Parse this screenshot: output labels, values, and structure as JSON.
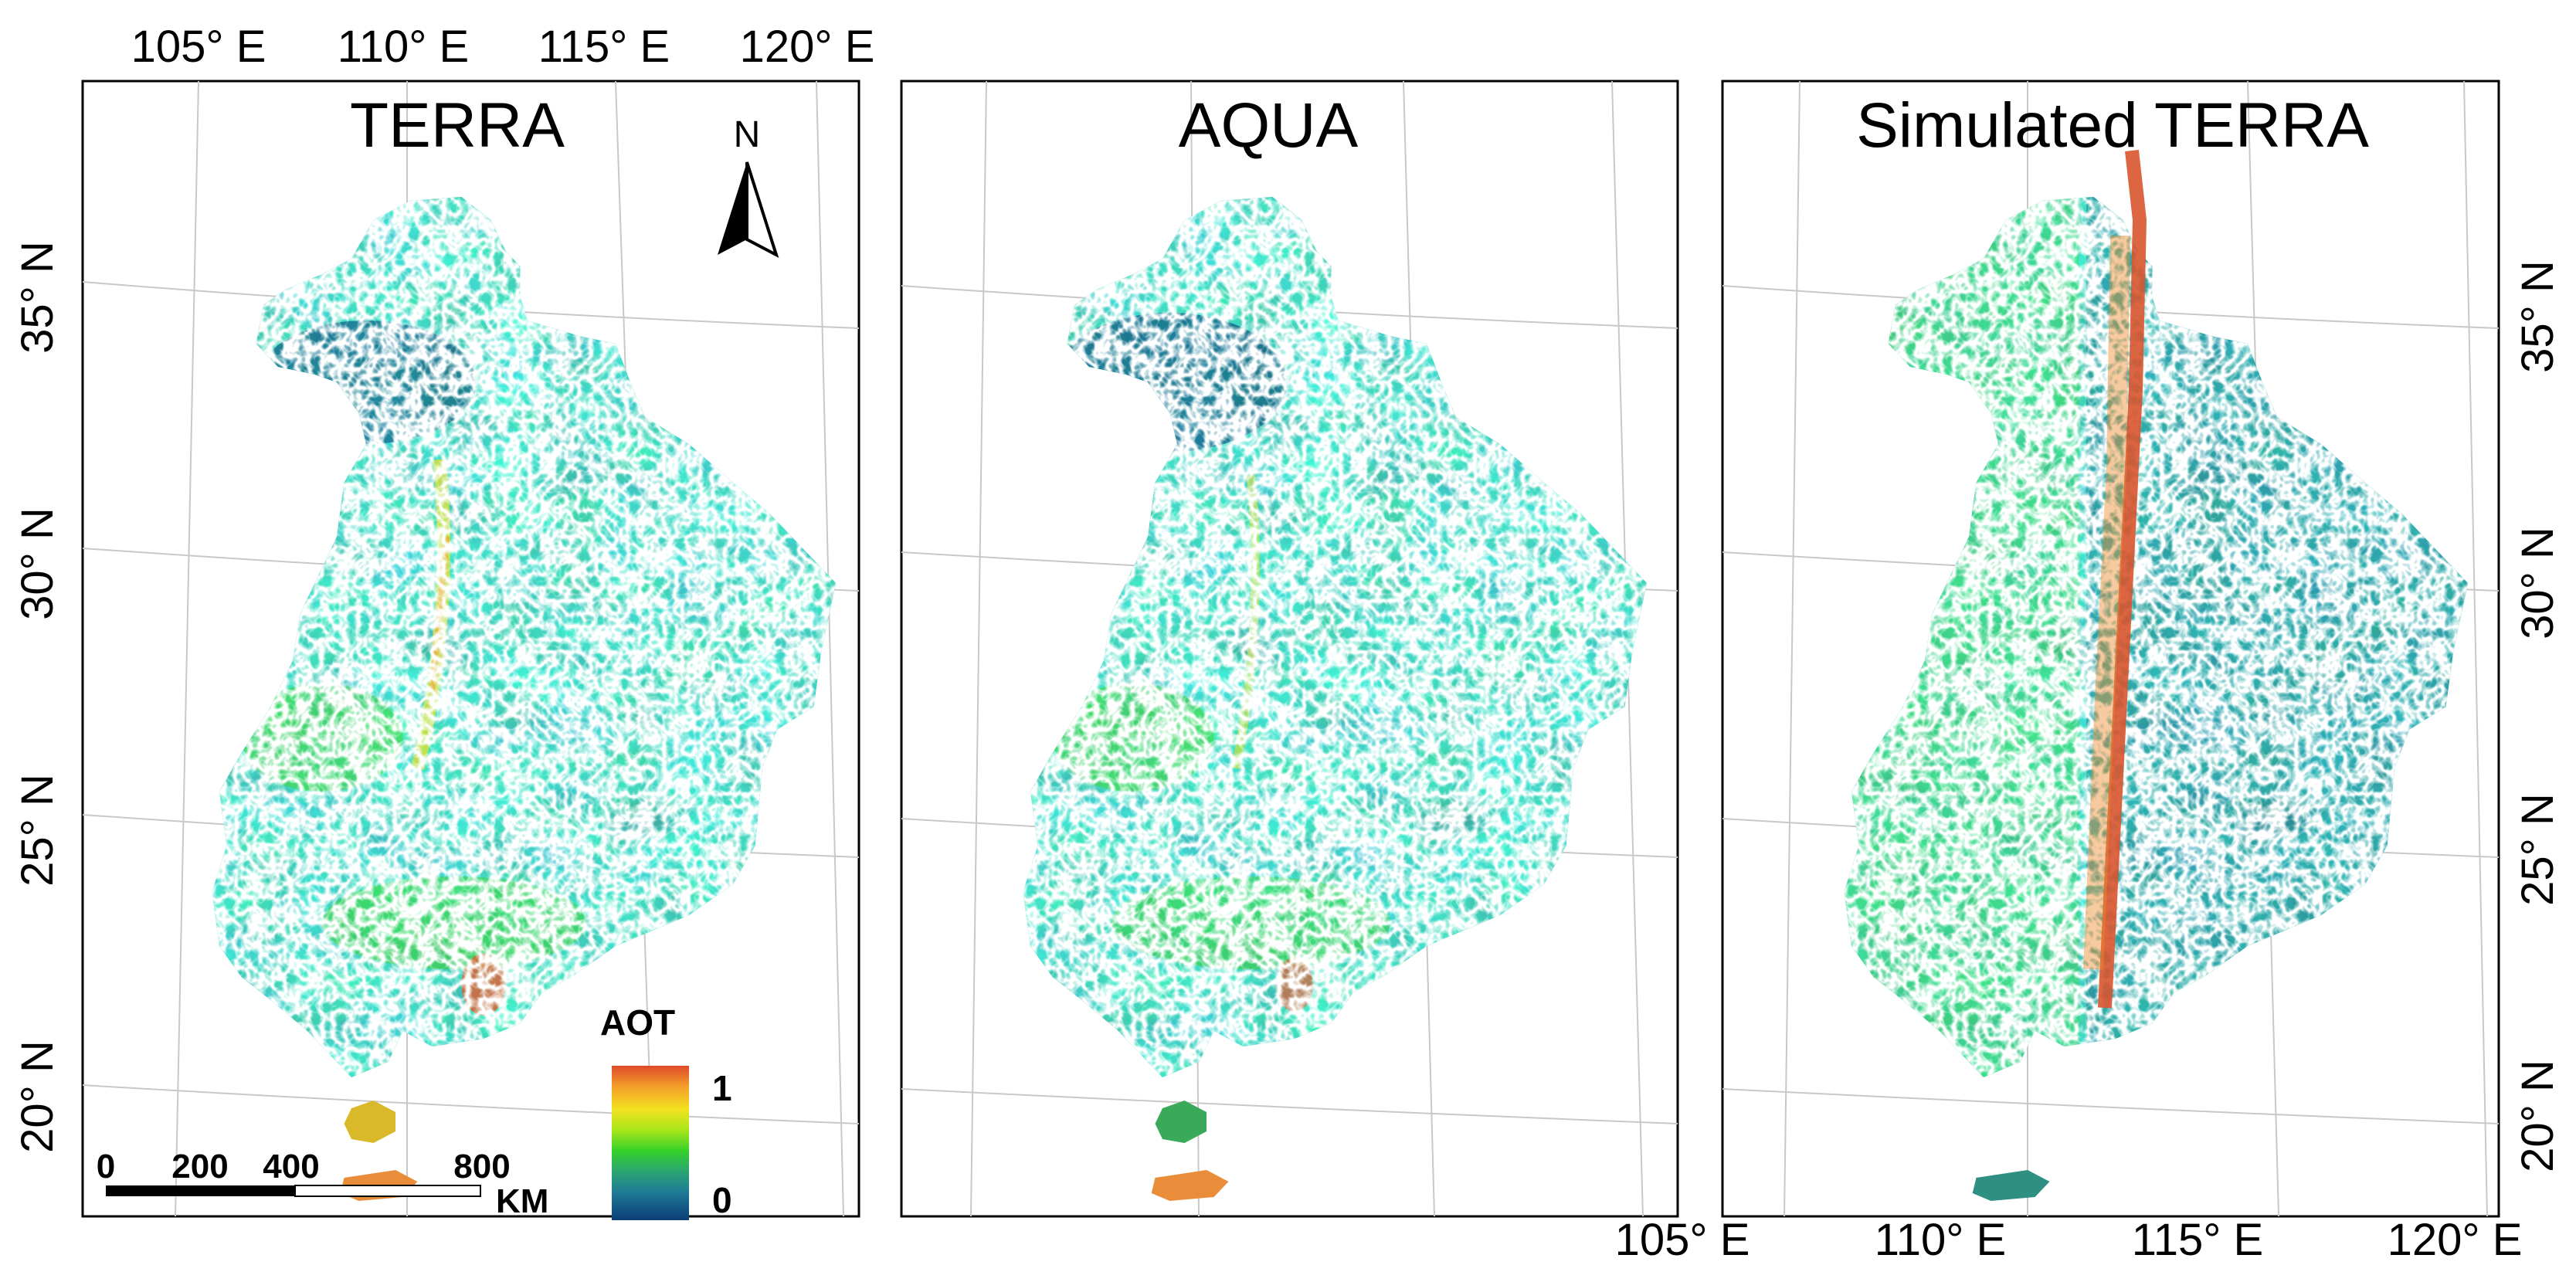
{
  "panels": [
    {
      "id": "terra",
      "title": "TERRA"
    },
    {
      "id": "aqua",
      "title": "AQUA"
    },
    {
      "id": "simulated",
      "title": "Simulated TERRA"
    }
  ],
  "top_lon_labels": [
    "105° E",
    "110° E",
    "115° E",
    "120° E"
  ],
  "bottom_lon_labels": [
    "105° E",
    "110° E",
    "115° E",
    "120° E"
  ],
  "left_lat_labels": [
    "35° N",
    "30° N",
    "25° N",
    "20° N"
  ],
  "right_lat_labels": [
    "35° N",
    "30° N",
    "25° N",
    "20° N"
  ],
  "north_arrow": {
    "label": "N",
    "icon": "north-arrow-icon"
  },
  "scale_bar": {
    "ticks": [
      "0",
      "200",
      "400",
      "800"
    ],
    "unit": "KM"
  },
  "legend": {
    "title": "AOT",
    "max_label": "1",
    "min_label": "0",
    "colors": [
      "#0b3d78",
      "#1e7a95",
      "#2aa66f",
      "#36d12a",
      "#a6e61b",
      "#f3e11e",
      "#f4a12a",
      "#de4b2a"
    ]
  },
  "colors": {
    "deep_blue": "#0b3d78",
    "teal": "#20788c",
    "green": "#33c52d",
    "bright_green": "#53e01f",
    "yellow": "#f2dd1c",
    "orange": "#ef8a2a",
    "red_orange": "#d8542e"
  }
}
